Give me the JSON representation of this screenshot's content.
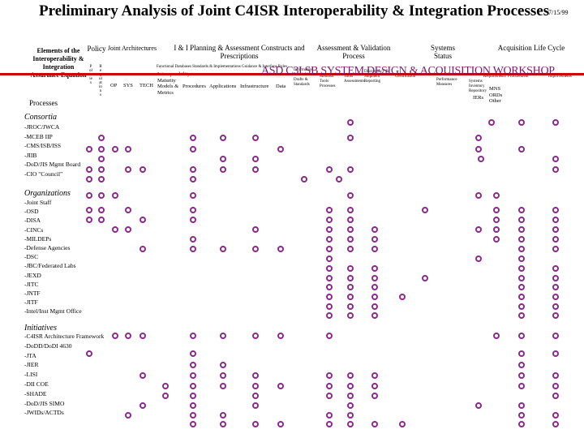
{
  "title": "Preliminary Analysis of Joint C4ISR Interoperability & Integration Processes",
  "date": "7/15/99",
  "left_header": "Elements of the Interoperability & Integration Assurance Equation",
  "processes_label": "Processes",
  "columns": {
    "policy": "Policy",
    "joint_arch": "Joint Architectures",
    "planning": "I & I Planning & Assessment Constructs and Prescriptions",
    "assessment": "Assessment & Validation Process",
    "systems": "Systems Status",
    "acquisition": "Acquisition Life Cycle"
  },
  "policy_sub": [
    "Policies",
    "Regulations"
  ],
  "arch_sub": [
    "OP",
    "SYS",
    "TECH"
  ],
  "planning_sub": {
    "maturity": "Interoperability Maturity Models & Metrics",
    "procedures": "Procedures",
    "apps": "Applications",
    "infra": "Infrastructure",
    "data": "Data",
    "top_line": "Functional Databases Standards & Implementations Guidance & Interface Rules",
    "stds": "Information Standards Drafts & Standards"
  },
  "assess_sub": {
    "methods": "Methods Tools Processes",
    "tools": "Tools Assessments",
    "disc": "Discrepancy & Shipment Reporting",
    "certif": "Certification"
  },
  "systems_sub": {
    "status": "Status & Performance Measures",
    "sysrep": "Systems Inventory Repository",
    "ier": "IERs"
  },
  "acq_sub": {
    "reqs": "Requirements",
    "proc": "Procurement",
    "ops": "Improvements",
    "mns": "MNS ORDs Other"
  },
  "banner": "ASD C3I SB SYSTEM DESIGN & ACQUISITION WORKSHOP",
  "sections": {
    "consortia": "Consortia",
    "organizations": "Organizations",
    "initiatives": "Initiatives"
  },
  "consortia": [
    "JROC/JWCA",
    "MCEB IIP",
    "CMS/ISB/ISS",
    "JIIB",
    "DoD/JIS Mgmt Board",
    "CIO \"Council\""
  ],
  "organizations": [
    "Joint Staff",
    "OSD",
    "DISA",
    "CINCs",
    "MILDEPs",
    "Defense Agencies",
    "DSC",
    "JBC/Federated Labs",
    "JEXD",
    "JITC",
    "JNTF",
    "JITF",
    "Intel/Inst Mgmt Office"
  ],
  "initiatives": [
    "C4ISR Architecture Framework",
    "DoDD/DoDI 4630",
    "JTA",
    "JIER",
    "LISI",
    "DII COE",
    "SHADE",
    "DoD/JIS SIMO",
    "JWIDs/ACTDs"
  ],
  "colors": {
    "dot": "#8a2a8a",
    "banner": "#7a1a6e",
    "redline": "#cc0000"
  }
}
